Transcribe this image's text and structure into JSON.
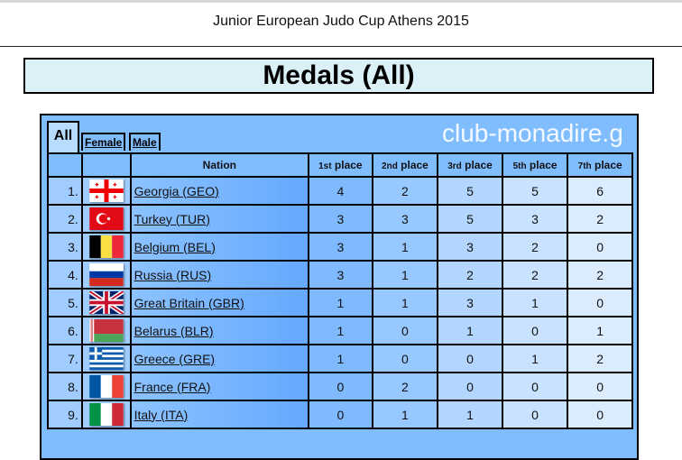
{
  "site_title": "Junior European Judo Cup Athens 2015",
  "page_title": "Medals (All)",
  "tabs": [
    {
      "label": "All",
      "active": true
    },
    {
      "label": "Female"
    },
    {
      "label": "Male"
    }
  ],
  "headers": {
    "nation": "Nation",
    "p1": "1st",
    "p2": "2nd",
    "p3": "3rd",
    "p5": "5th",
    "p7": "7th",
    "suffix": "place"
  },
  "rows": [
    {
      "rank": "1.",
      "flag": "georgia",
      "nation": "Georgia (GEO)",
      "p1": "4",
      "p2": "2",
      "p3": "5",
      "p5": "5",
      "p7": "6"
    },
    {
      "rank": "2.",
      "flag": "turkey",
      "nation": "Turkey (TUR)",
      "p1": "3",
      "p2": "3",
      "p3": "5",
      "p5": "3",
      "p7": "2"
    },
    {
      "rank": "3.",
      "flag": "belgium",
      "nation": "Belgium (BEL)",
      "p1": "3",
      "p2": "1",
      "p3": "3",
      "p5": "2",
      "p7": "0"
    },
    {
      "rank": "4.",
      "flag": "russia",
      "nation": "Russia (RUS)",
      "p1": "3",
      "p2": "1",
      "p3": "2",
      "p5": "2",
      "p7": "2"
    },
    {
      "rank": "5.",
      "flag": "great-britain",
      "nation": "Great Britain (GBR)",
      "p1": "1",
      "p2": "1",
      "p3": "3",
      "p5": "1",
      "p7": "0"
    },
    {
      "rank": "6.",
      "flag": "belarus",
      "nation": "Belarus (BLR)",
      "p1": "1",
      "p2": "0",
      "p3": "1",
      "p5": "0",
      "p7": "1"
    },
    {
      "rank": "7.",
      "flag": "greece",
      "nation": "Greece (GRE)",
      "p1": "1",
      "p2": "0",
      "p3": "0",
      "p5": "1",
      "p7": "2"
    },
    {
      "rank": "8.",
      "flag": "france",
      "nation": "France (FRA)",
      "p1": "0",
      "p2": "2",
      "p3": "0",
      "p5": "0",
      "p7": "0"
    },
    {
      "rank": "9.",
      "flag": "italy",
      "nation": "Italy (ITA)",
      "p1": "0",
      "p2": "1",
      "p3": "1",
      "p5": "0",
      "p7": "0"
    }
  ],
  "watermark": "club-monadire.g"
}
